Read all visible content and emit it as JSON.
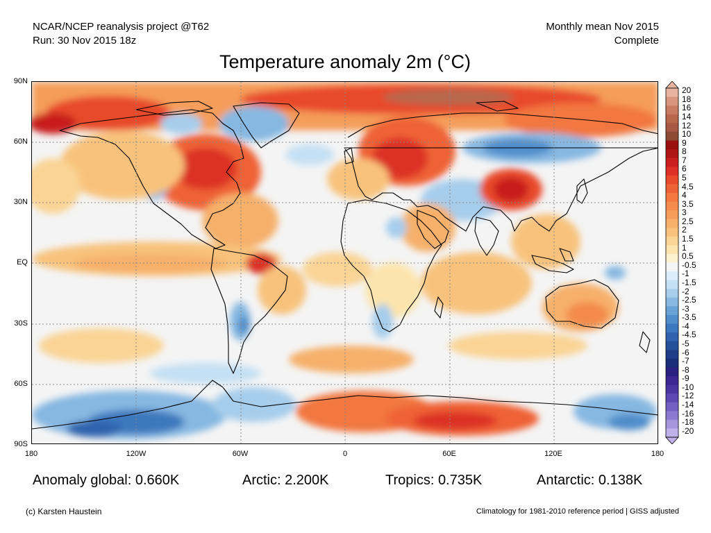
{
  "header": {
    "left_line1": "NCAR/NCEP reanalysis project @T62",
    "left_line2": "Run: 30 Nov 2015 18z",
    "right_line1": "Monthly mean Nov 2015",
    "right_line2": "Complete"
  },
  "title": "Temperature anomaly 2m (°C)",
  "axes": {
    "lat_labels": [
      "90N",
      "60N",
      "30N",
      "EQ",
      "30S",
      "60S",
      "90S"
    ],
    "lon_labels": [
      "180",
      "120W",
      "60W",
      "0",
      "60E",
      "120E",
      "180"
    ]
  },
  "colorbar": {
    "labels": [
      "20",
      "18",
      "16",
      "14",
      "12",
      "10",
      "9",
      "8",
      "7",
      "6",
      "5",
      "4.5",
      "4",
      "3.5",
      "3",
      "2.5",
      "2",
      "1.5",
      "1",
      "0.5",
      "-0.5",
      "-1",
      "-1.5",
      "-2",
      "-2.5",
      "-3",
      "-3.5",
      "-4",
      "-4.5",
      "-5",
      "-6",
      "-7",
      "-8",
      "-9",
      "-10",
      "-12",
      "-14",
      "-16",
      "-18",
      "-20"
    ],
    "colors": [
      "#e8b3a0",
      "#d9957e",
      "#c97b62",
      "#b8674d",
      "#a65842",
      "#8e4a35",
      "#9a1010",
      "#b01515",
      "#c81e1e",
      "#dc3026",
      "#e84a2a",
      "#ef6236",
      "#f27740",
      "#f48a4c",
      "#f59d5a",
      "#f6b06a",
      "#f8c27c",
      "#fad494",
      "#fce4ac",
      "#fdf2d0",
      "#f4f4f4",
      "#dcecf8",
      "#c4e0f4",
      "#a6cdec",
      "#86b8e2",
      "#68a2d6",
      "#508dca",
      "#3c78bd",
      "#2f63ad",
      "#264f9a",
      "#1f3d88",
      "#1a2e78",
      "#2a2280",
      "#3a2890",
      "#4a36a0",
      "#5e48b2",
      "#7460c2",
      "#8c7ad0",
      "#a694dc",
      "#c0b0e8"
    ]
  },
  "stats": {
    "global": "Anomaly global: 0.660K",
    "arctic": "Arctic: 2.200K",
    "tropics": "Tropics: 0.735K",
    "antarctic": "Antarctic: 0.138K"
  },
  "credits": {
    "left": "(c) Karsten Haustein",
    "right": "Climatology for 1981-2010 reference period | GISS adjusted"
  }
}
